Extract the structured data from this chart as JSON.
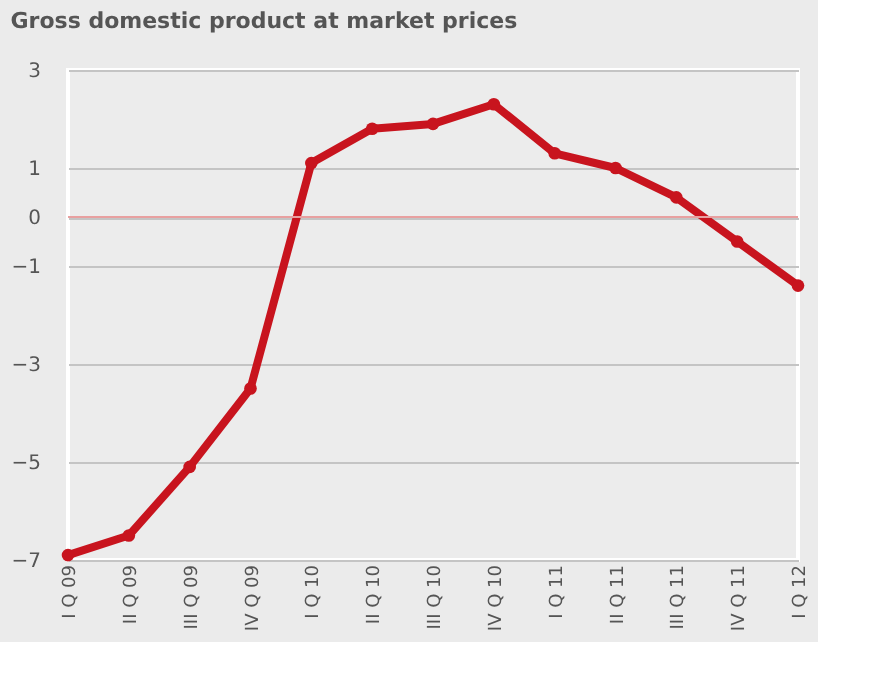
{
  "chart_data": {
    "type": "line",
    "title": "Gross domestic product at market prices",
    "categories": [
      "I Q 09",
      "II Q 09",
      "III Q 09",
      "IV Q 09",
      "I Q 10",
      "II Q 10",
      "III Q 10",
      "IV Q 10",
      "I Q 11",
      "II Q 11",
      "III Q 11",
      "IV Q 11",
      "I Q 12"
    ],
    "series": [
      {
        "color": "#c8141e",
        "values": [
          -6.9,
          -6.5,
          -5.1,
          -3.5,
          1.1,
          1.8,
          1.9,
          2.3,
          1.3,
          1.0,
          0.4,
          -0.5,
          -1.4
        ]
      }
    ],
    "ylim": [
      -7,
      3
    ],
    "yticks": [
      -7,
      -5,
      -3,
      -1,
      0,
      1,
      3
    ],
    "ref_lines": [
      {
        "axis": "y",
        "value": 0,
        "color": "#e8a0a0"
      }
    ],
    "grid": "y",
    "marker": "circle",
    "line_style": "solid"
  }
}
